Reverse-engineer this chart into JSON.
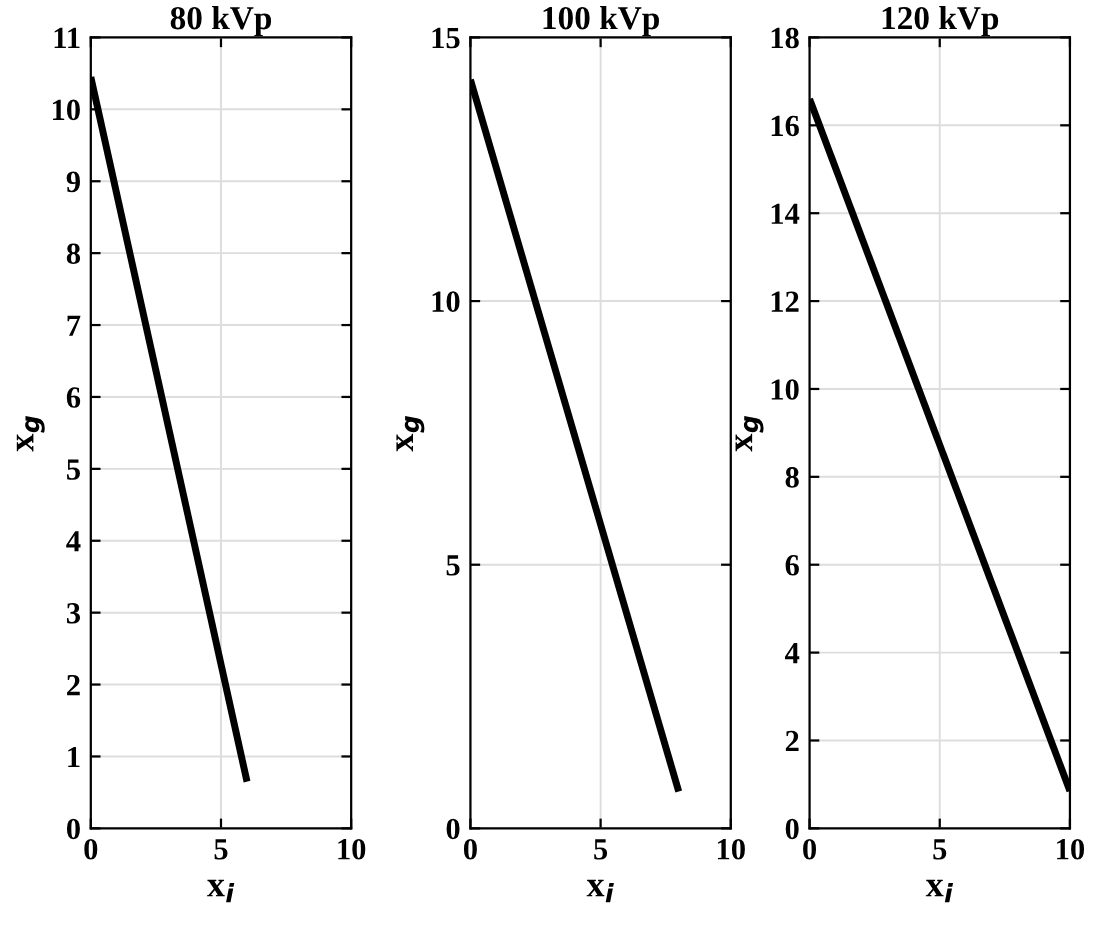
{
  "chart_data": [
    {
      "type": "line",
      "title": "80 kVp",
      "xlabel": "x$_{i}$",
      "ylabel": "x$_{g}$",
      "x": [
        0,
        6
      ],
      "series": [
        {
          "color": "#000000",
          "values": [
            10.45,
            0.65
          ]
        }
      ],
      "xlim": [
        0,
        10
      ],
      "xticks": [
        0,
        5,
        10
      ],
      "ylim": [
        0,
        11
      ],
      "yticks": [
        0,
        1,
        2,
        3,
        4,
        5,
        6,
        7,
        8,
        9,
        10,
        11
      ],
      "grid": true,
      "marker": "none",
      "line_style": "solid"
    },
    {
      "type": "line",
      "title": "100 kVp",
      "xlabel": "x$_{i}$",
      "ylabel": "x$_{g}$",
      "x": [
        0,
        8
      ],
      "series": [
        {
          "color": "#000000",
          "values": [
            14.2,
            0.7
          ]
        }
      ],
      "xlim": [
        0,
        10
      ],
      "xticks": [
        0,
        5,
        10
      ],
      "ylim": [
        0,
        15
      ],
      "yticks": [
        0,
        5,
        10,
        15
      ],
      "grid": true,
      "marker": "none",
      "line_style": "solid"
    },
    {
      "type": "line",
      "title": "120 kVp",
      "xlabel": "x$_{i}$",
      "ylabel": "x$_{g}$",
      "x": [
        0,
        10
      ],
      "series": [
        {
          "color": "#000000",
          "values": [
            16.6,
            0.85
          ]
        }
      ],
      "xlim": [
        0,
        10
      ],
      "xticks": [
        0,
        5,
        10
      ],
      "ylim": [
        0,
        18
      ],
      "yticks": [
        0,
        2,
        4,
        6,
        8,
        10,
        12,
        14,
        16,
        18
      ],
      "grid": true,
      "marker": "none",
      "line_style": "solid"
    }
  ]
}
